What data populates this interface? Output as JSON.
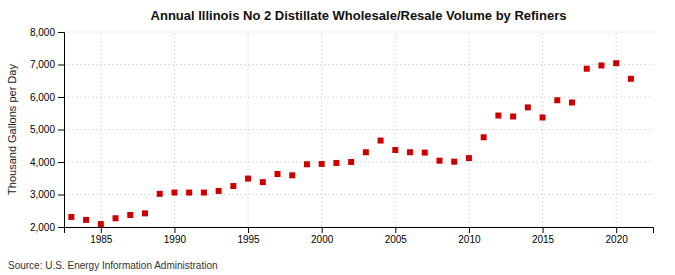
{
  "chart_data": {
    "type": "scatter",
    "title": "Annual Illinois No 2 Distillate Wholesale/Resale Volume by Refiners",
    "ylabel": "Thousand Gallons per Day",
    "annotations": [
      "Source: U.S. Energy Information Administration"
    ],
    "x": [
      1983,
      1984,
      1985,
      1986,
      1987,
      1988,
      1989,
      1990,
      1991,
      1992,
      1993,
      1994,
      1995,
      1996,
      1997,
      1998,
      1999,
      2000,
      2001,
      2002,
      2003,
      2004,
      2005,
      2006,
      2007,
      2008,
      2009,
      2010,
      2011,
      2012,
      2013,
      2014,
      2015,
      2016,
      2017,
      2018,
      2019,
      2020,
      2021
    ],
    "values": [
      2310,
      2220,
      2090,
      2270,
      2370,
      2420,
      3020,
      3060,
      3060,
      3060,
      3110,
      3260,
      3490,
      3380,
      3630,
      3590,
      3930,
      3940,
      3970,
      4000,
      4300,
      4660,
      4370,
      4300,
      4290,
      4040,
      4010,
      4120,
      4760,
      5430,
      5400,
      5680,
      5370,
      5900,
      5830,
      6870,
      6970,
      7040,
      6560
    ],
    "color": "#cc0000",
    "marker": "square",
    "xlim": [
      1982.5,
      2022.5
    ],
    "xticks": [
      1985,
      1990,
      1995,
      2000,
      2005,
      2010,
      2015,
      2020
    ],
    "ylim": [
      2000,
      8000
    ],
    "yticks": [
      {
        "value": 2000,
        "label": "2,000"
      },
      {
        "value": 3000,
        "label": "3,000"
      },
      {
        "value": 4000,
        "label": "4,000"
      },
      {
        "value": 5000,
        "label": "5,000"
      },
      {
        "value": 6000,
        "label": "6,000"
      },
      {
        "value": 7000,
        "label": "7,000"
      },
      {
        "value": 8000,
        "label": "8,000"
      }
    ],
    "grid": true
  }
}
